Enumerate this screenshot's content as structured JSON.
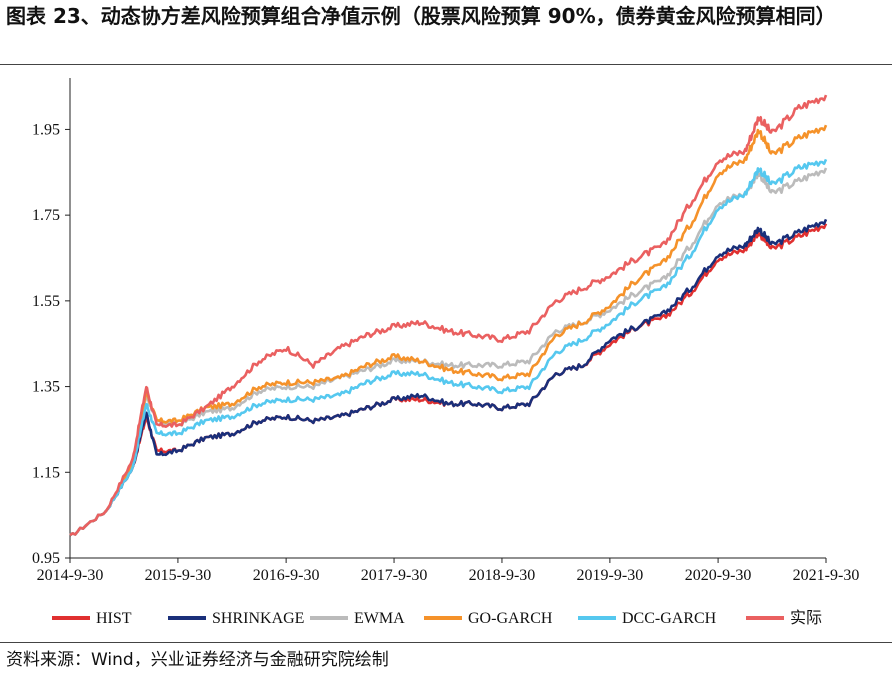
{
  "title": "图表 23、动态协方差风险预算组合净值示例（股票风险预算 90%，债券黄金风险预算相同）",
  "source": "资料来源：Wind，兴业证券经济与金融研究院绘制",
  "chart_data": {
    "type": "line",
    "x_ticks": [
      "2014-9-30",
      "2015-9-30",
      "2016-9-30",
      "2017-9-30",
      "2018-9-30",
      "2019-9-30",
      "2020-9-30",
      "2021-9-30"
    ],
    "y_ticks": [
      "0.95",
      "1.15",
      "1.35",
      "1.55",
      "1.75",
      "1.95"
    ],
    "ylim": [
      0.95,
      2.07
    ],
    "xlim": [
      "2014-9-30",
      "2021-9-30"
    ],
    "grid": false,
    "legend_position": "bottom",
    "x_dates": [
      "2014-9-30",
      "2015-1-30",
      "2015-4-30",
      "2015-6-15",
      "2015-7-20",
      "2015-9-30",
      "2015-12-31",
      "2016-3-31",
      "2016-6-30",
      "2016-9-30",
      "2016-12-31",
      "2017-3-31",
      "2017-6-30",
      "2017-9-30",
      "2017-12-31",
      "2018-3-31",
      "2018-6-30",
      "2018-9-30",
      "2018-12-31",
      "2019-3-31",
      "2019-6-30",
      "2019-9-30",
      "2019-12-31",
      "2020-3-31",
      "2020-6-30",
      "2020-9-30",
      "2020-12-31",
      "2021-2-15",
      "2021-3-31",
      "2021-6-30",
      "2021-9-30"
    ],
    "series": [
      {
        "name": "HIST",
        "color": "#e03030",
        "values": [
          1.0,
          1.06,
          1.16,
          1.28,
          1.2,
          1.2,
          1.23,
          1.24,
          1.27,
          1.28,
          1.27,
          1.28,
          1.3,
          1.32,
          1.32,
          1.31,
          1.31,
          1.3,
          1.31,
          1.38,
          1.4,
          1.45,
          1.49,
          1.51,
          1.57,
          1.65,
          1.67,
          1.71,
          1.67,
          1.7,
          1.73
        ]
      },
      {
        "name": "SHRINKAGE",
        "color": "#1a2f7a",
        "values": [
          1.0,
          1.06,
          1.16,
          1.29,
          1.19,
          1.2,
          1.23,
          1.24,
          1.27,
          1.28,
          1.27,
          1.28,
          1.3,
          1.32,
          1.33,
          1.31,
          1.31,
          1.3,
          1.31,
          1.38,
          1.4,
          1.46,
          1.49,
          1.52,
          1.58,
          1.66,
          1.68,
          1.72,
          1.68,
          1.71,
          1.74
        ]
      },
      {
        "name": "EWMA",
        "color": "#bbbbbb",
        "values": [
          1.0,
          1.06,
          1.17,
          1.33,
          1.27,
          1.26,
          1.29,
          1.3,
          1.34,
          1.35,
          1.35,
          1.37,
          1.39,
          1.41,
          1.41,
          1.4,
          1.4,
          1.4,
          1.41,
          1.48,
          1.5,
          1.53,
          1.57,
          1.6,
          1.68,
          1.78,
          1.8,
          1.85,
          1.8,
          1.83,
          1.86
        ]
      },
      {
        "name": "GO-GARCH",
        "color": "#f5922a",
        "values": [
          1.0,
          1.06,
          1.17,
          1.34,
          1.27,
          1.27,
          1.3,
          1.31,
          1.35,
          1.36,
          1.36,
          1.37,
          1.4,
          1.42,
          1.41,
          1.39,
          1.38,
          1.37,
          1.38,
          1.47,
          1.5,
          1.54,
          1.6,
          1.64,
          1.73,
          1.85,
          1.88,
          1.95,
          1.89,
          1.93,
          1.96
        ]
      },
      {
        "name": "DCC-GARCH",
        "color": "#55c8ef",
        "values": [
          1.0,
          1.06,
          1.16,
          1.31,
          1.24,
          1.24,
          1.27,
          1.28,
          1.31,
          1.32,
          1.32,
          1.33,
          1.36,
          1.38,
          1.38,
          1.36,
          1.35,
          1.34,
          1.35,
          1.43,
          1.46,
          1.5,
          1.55,
          1.58,
          1.66,
          1.77,
          1.8,
          1.86,
          1.82,
          1.86,
          1.88
        ]
      },
      {
        "name": "实际",
        "color": "#ea6060",
        "values": [
          1.0,
          1.06,
          1.18,
          1.35,
          1.26,
          1.26,
          1.3,
          1.35,
          1.41,
          1.44,
          1.4,
          1.44,
          1.47,
          1.49,
          1.5,
          1.48,
          1.47,
          1.46,
          1.48,
          1.55,
          1.58,
          1.61,
          1.65,
          1.68,
          1.78,
          1.88,
          1.9,
          1.98,
          1.94,
          2.0,
          2.03
        ]
      }
    ]
  }
}
